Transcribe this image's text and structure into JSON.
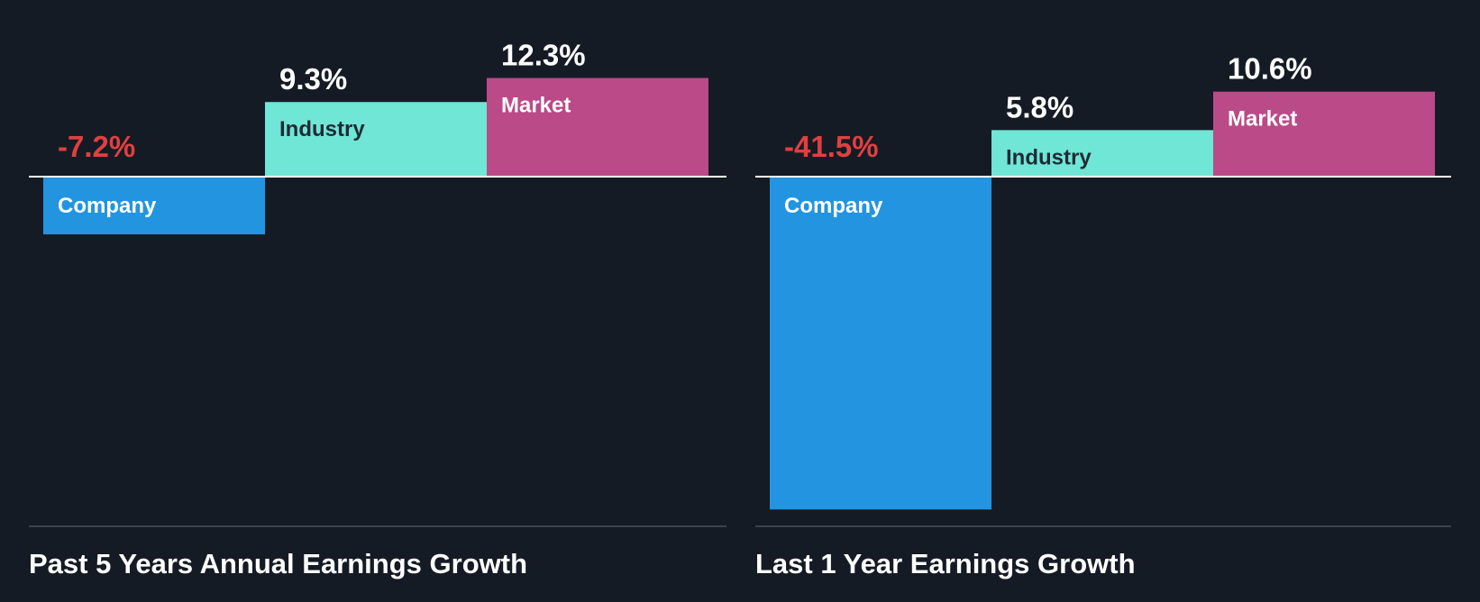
{
  "colors": {
    "background": "#151b24",
    "company": "#2394e0",
    "industry": "#70e6d6",
    "market": "#bb4a88",
    "negative_text": "#e04040",
    "positive_text": "#ffffff",
    "label_on_light": "#1f2b36",
    "label_on_dark": "#ffffff",
    "baseline": "#ffffff",
    "bottom_rule": "#3a4350"
  },
  "chart_data": [
    {
      "type": "bar",
      "title": "Past 5 Years Annual Earnings Growth",
      "unit": "%",
      "ylim": [
        -41.5,
        12.3
      ],
      "categories": [
        "Company",
        "Industry",
        "Market"
      ],
      "values": [
        -7.2,
        9.3,
        12.3
      ],
      "value_labels": [
        "-7.2%",
        "9.3%",
        "12.3%"
      ]
    },
    {
      "type": "bar",
      "title": "Last 1 Year Earnings Growth",
      "unit": "%",
      "ylim": [
        -41.5,
        12.3
      ],
      "categories": [
        "Company",
        "Industry",
        "Market"
      ],
      "values": [
        -41.5,
        5.8,
        10.6
      ],
      "value_labels": [
        "-41.5%",
        "5.8%",
        "10.6%"
      ]
    }
  ]
}
